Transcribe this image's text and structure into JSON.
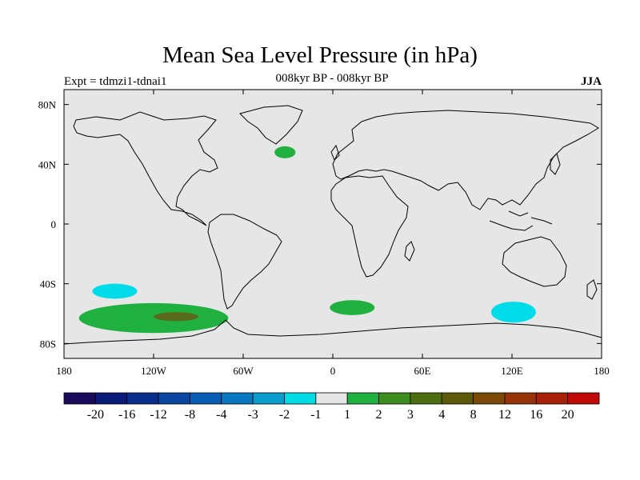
{
  "title": "Mean Sea Level Pressure (in hPa)",
  "subtitle": "008kyr BP - 008kyr BP",
  "left_label": "Expt = tdmzi1-tdnai1",
  "right_label": "JJA",
  "colors": {
    "land_ocean_background": "#e6e6e6",
    "cyan_anomaly": "#00dcea",
    "green_anomaly": "#1fb040",
    "dark_green_anomaly": "#5a6a1c"
  },
  "axes": {
    "lon_ticks": [
      {
        "value": -180,
        "label": "180"
      },
      {
        "value": -120,
        "label": "120W"
      },
      {
        "value": -60,
        "label": "60W"
      },
      {
        "value": 0,
        "label": "0"
      },
      {
        "value": 60,
        "label": "60E"
      },
      {
        "value": 120,
        "label": "120E"
      },
      {
        "value": 180,
        "label": "180"
      }
    ],
    "lat_ticks": [
      {
        "value": 80,
        "label": "80N"
      },
      {
        "value": 40,
        "label": "40N"
      },
      {
        "value": 0,
        "label": "0"
      },
      {
        "value": -40,
        "label": "40S"
      },
      {
        "value": -80,
        "label": "80S"
      }
    ],
    "lon_range": [
      -180,
      180
    ],
    "lat_range": [
      -90,
      90
    ]
  },
  "colorbar": {
    "colors": [
      "#1a0a5c",
      "#0a1a78",
      "#0a2e8c",
      "#0a46a0",
      "#0a5cb4",
      "#0a78c0",
      "#0a9ccc",
      "#00dce6",
      "#e6e6e6",
      "#1fb040",
      "#3c8c1e",
      "#4c6e10",
      "#5c5a08",
      "#7a4a06",
      "#963208",
      "#a82008",
      "#c00a08"
    ],
    "labels": [
      "-20",
      "-16",
      "-12",
      "-8",
      "-4",
      "-3",
      "-2",
      "-1",
      "1",
      "2",
      "3",
      "4",
      "8",
      "12",
      "16",
      "20"
    ]
  },
  "anomaly_regions": [
    {
      "name": "north-atlantic-positive",
      "level": "1 to 2",
      "color": "#1fb040",
      "center_lon": -32,
      "center_lat": 48,
      "half_lon": 7,
      "half_lat": 4
    },
    {
      "name": "south-pacific-negative",
      "level": "-2 to -1",
      "color": "#00dcea",
      "center_lon": -146,
      "center_lat": -45,
      "half_lon": 15,
      "half_lat": 5
    },
    {
      "name": "south-pacific-positive",
      "level": "1 to 2",
      "color": "#1fb040",
      "center_lon": -120,
      "center_lat": -63,
      "half_lon": 50,
      "half_lat": 10
    },
    {
      "name": "south-pacific-strong-positive",
      "level": "2 to 3",
      "color": "#5a6a1c",
      "center_lon": -105,
      "center_lat": -62,
      "half_lon": 15,
      "half_lat": 3
    },
    {
      "name": "south-atlantic-positive",
      "level": "1 to 2",
      "color": "#1fb040",
      "center_lon": 13,
      "center_lat": -56,
      "half_lon": 15,
      "half_lat": 5
    },
    {
      "name": "south-indian-negative",
      "level": "-2 to -1",
      "color": "#00dcea",
      "center_lon": 121,
      "center_lat": -59,
      "half_lon": 15,
      "half_lat": 7
    }
  ]
}
